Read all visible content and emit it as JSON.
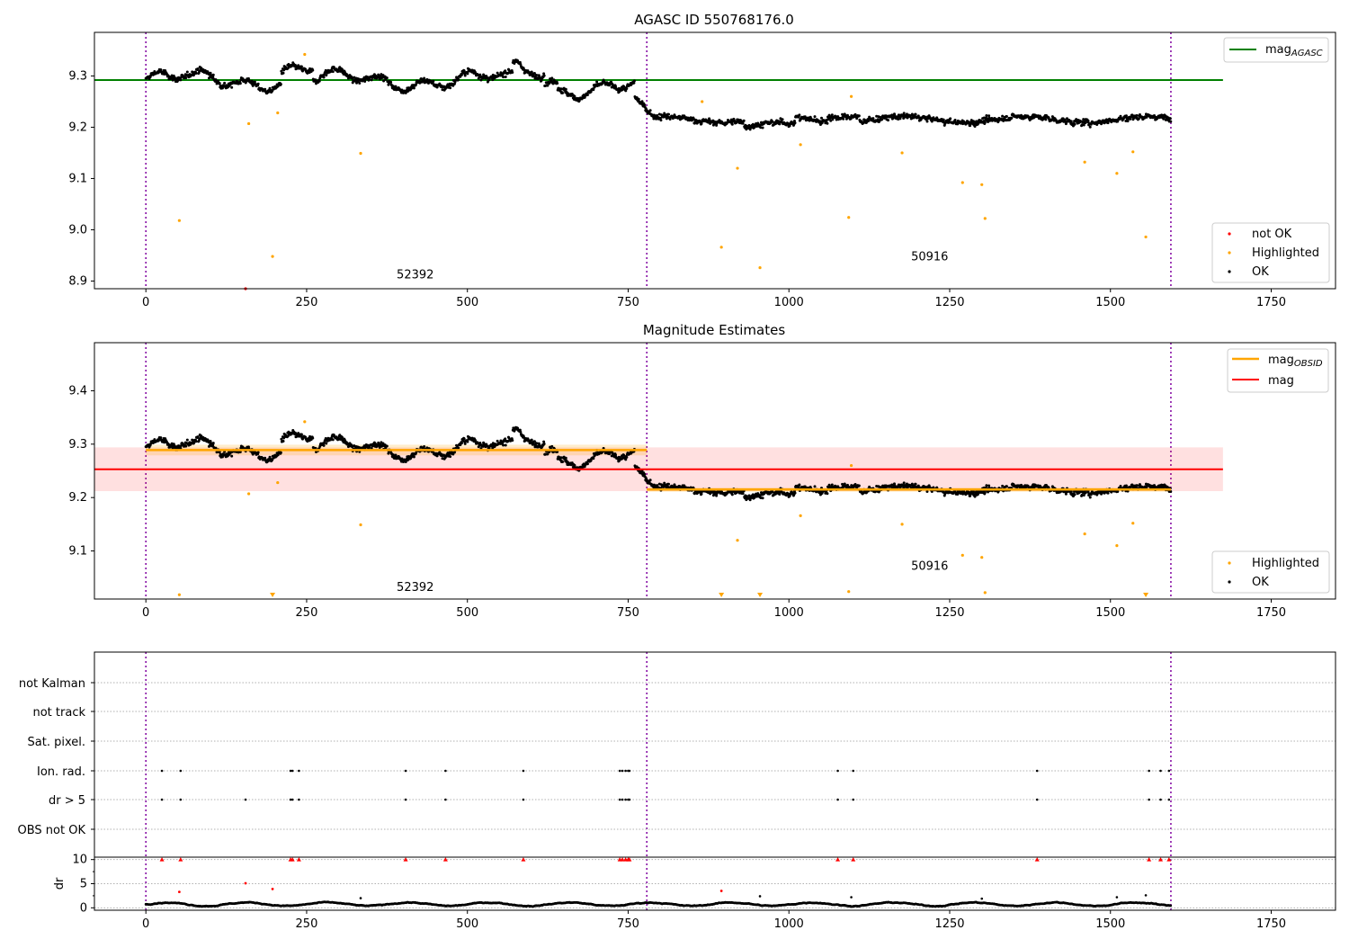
{
  "chart_data": [
    {
      "type": "scatter",
      "title": "AGASC ID 550768176.0",
      "xlim": [
        -80,
        1850
      ],
      "ylim": [
        8.885,
        9.385
      ],
      "x_ticks": [
        0,
        250,
        500,
        750,
        1000,
        1250,
        1500,
        1750
      ],
      "y_ticks": [
        8.9,
        9.0,
        9.1,
        9.2,
        9.3
      ],
      "y_tick_labels": [
        "8.9",
        "9.0",
        "9.1",
        "9.2",
        "9.3"
      ],
      "grid": false,
      "obsid_boundaries": [
        0,
        779,
        1594
      ],
      "obsid_labels": [
        {
          "text": "52392",
          "x": 390,
          "y": 8.905
        },
        {
          "text": "50916",
          "x": 1190,
          "y": 8.94
        }
      ],
      "mag_agasc": {
        "value": 9.292,
        "x_range": [
          -80,
          1675
        ],
        "color": "#008000"
      },
      "segments": [
        {
          "x_range": [
            0,
            779
          ],
          "mean": 9.292,
          "spread": 0.012,
          "trend": 0.0
        },
        {
          "x_range": [
            779,
            1594
          ],
          "mean": 9.215,
          "spread": 0.008,
          "trend": 0.0
        }
      ],
      "highlighted_points": [
        [
          52,
          9.018
        ],
        [
          160,
          9.207
        ],
        [
          197,
          8.948
        ],
        [
          205,
          9.228
        ],
        [
          247,
          9.342
        ],
        [
          334,
          9.149
        ],
        [
          865,
          9.25
        ],
        [
          920,
          9.12
        ],
        [
          895,
          8.966
        ],
        [
          955,
          8.926
        ],
        [
          1018,
          9.166
        ],
        [
          1093,
          9.024
        ],
        [
          1097,
          9.26
        ],
        [
          1176,
          9.15
        ],
        [
          1270,
          9.092
        ],
        [
          1300,
          9.088
        ],
        [
          1305,
          9.022
        ],
        [
          1460,
          9.132
        ],
        [
          1510,
          9.11
        ],
        [
          1535,
          9.152
        ],
        [
          1555,
          8.986
        ]
      ],
      "not_ok_points": [
        [
          155,
          8.885
        ]
      ],
      "legend_upper": [
        {
          "label": "mag",
          "sub": "AGASC",
          "color": "#008000"
        }
      ],
      "legend_lower": [
        {
          "label": "not OK",
          "color": "#ff0000"
        },
        {
          "label": "Highlighted",
          "color": "#ffa500"
        },
        {
          "label": "OK",
          "color": "#000000"
        }
      ]
    },
    {
      "type": "scatter",
      "title": "Magnitude Estimates",
      "xlim": [
        -80,
        1850
      ],
      "ylim": [
        9.01,
        9.49
      ],
      "x_ticks": [
        0,
        250,
        500,
        750,
        1000,
        1250,
        1500,
        1750
      ],
      "y_ticks": [
        9.1,
        9.2,
        9.3,
        9.4
      ],
      "y_tick_labels": [
        "9.1",
        "9.2",
        "9.3",
        "9.4"
      ],
      "grid": false,
      "obsid_boundaries": [
        0,
        779,
        1594
      ],
      "obsid_labels": [
        {
          "text": "52392",
          "x": 390,
          "y": 9.025
        },
        {
          "text": "50916",
          "x": 1190,
          "y": 9.065
        }
      ],
      "mag": {
        "value": 9.253,
        "band": [
          9.212,
          9.294
        ],
        "x_range": [
          -80,
          1675
        ],
        "color": "#ff0000"
      },
      "mag_obsid": [
        {
          "x_range": [
            0,
            779
          ],
          "value": 9.289,
          "band": [
            9.279,
            9.299
          ]
        },
        {
          "x_range": [
            779,
            1594
          ],
          "value": 9.215,
          "band": [
            9.211,
            9.219
          ]
        }
      ],
      "highlighted_points": [
        [
          160,
          9.207
        ],
        [
          205,
          9.228
        ],
        [
          247,
          9.342
        ],
        [
          334,
          9.149
        ],
        [
          920,
          9.12
        ],
        [
          1018,
          9.166
        ],
        [
          1093,
          9.024
        ],
        [
          1097,
          9.26
        ],
        [
          1176,
          9.15
        ],
        [
          1270,
          9.092
        ],
        [
          1300,
          9.088
        ],
        [
          1305,
          9.022
        ],
        [
          1460,
          9.132
        ],
        [
          1510,
          9.11
        ],
        [
          1535,
          9.152
        ],
        [
          52,
          9.018
        ]
      ],
      "clipped_points": [
        197,
        895,
        955,
        1555
      ],
      "legend_upper": [
        {
          "label": "mag",
          "sub": "OBSID",
          "color": "#ffa500"
        },
        {
          "label": "mag",
          "sub": "",
          "color": "#ff0000"
        }
      ],
      "legend_lower": [
        {
          "label": "Highlighted",
          "color": "#ffa500"
        },
        {
          "label": "OK",
          "color": "#000000"
        }
      ]
    },
    {
      "type": "scatter",
      "xlim": [
        -80,
        1850
      ],
      "x_ticks": [
        0,
        250,
        500,
        750,
        1000,
        1250,
        1500,
        1750
      ],
      "obsid_boundaries": [
        0,
        779,
        1594
      ],
      "flag_rows": [
        "not Kalman",
        "not track",
        "Sat. pixel.",
        "Ion. rad.",
        "dr > 5",
        "OBS not OK"
      ],
      "flag_points": {
        "Ion. rad.": [
          25,
          54,
          225,
          228,
          238,
          404,
          466,
          587,
          737,
          741,
          746,
          750,
          752,
          1076,
          1100,
          1386,
          1560,
          1578,
          1591
        ],
        "dr > 5": [
          25,
          54,
          155,
          225,
          228,
          238,
          404,
          466,
          587,
          737,
          741,
          746,
          750,
          752,
          1076,
          1100,
          1386,
          1560,
          1578,
          1591
        ]
      },
      "dr_ylabel": "dr",
      "dr_ylim": [
        -0.5,
        10.5
      ],
      "dr_ticks": [
        0,
        5,
        10
      ],
      "dr_tick_labels": [
        "0",
        "5",
        "10"
      ],
      "dr_clipped_x": [
        25,
        54,
        225,
        228,
        238,
        404,
        466,
        587,
        737,
        741,
        746,
        750,
        752,
        1076,
        1100,
        1386,
        1560,
        1578,
        1591
      ],
      "dr_highlight_points": [
        [
          52,
          3.3
        ],
        [
          155,
          5.1
        ],
        [
          197,
          3.9
        ],
        [
          895,
          3.5
        ]
      ],
      "dr_outliers": [
        [
          334,
          2.0
        ],
        [
          955,
          2.4
        ],
        [
          1097,
          2.2
        ],
        [
          1300,
          1.9
        ],
        [
          1510,
          2.2
        ],
        [
          1555,
          2.6
        ]
      ]
    }
  ]
}
